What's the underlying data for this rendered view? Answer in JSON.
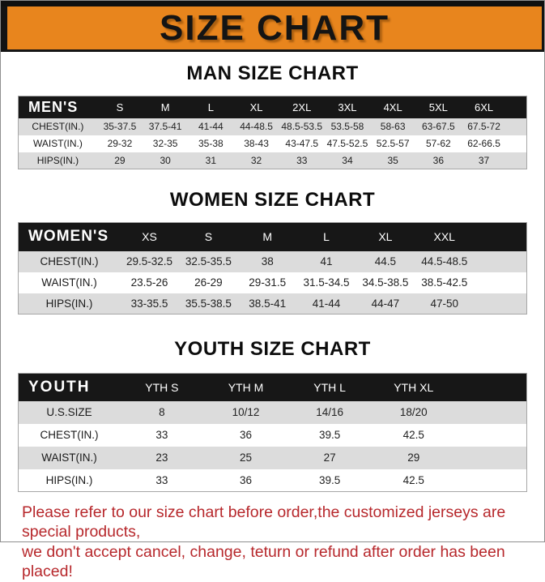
{
  "colors": {
    "accent_orange": "#E8851D",
    "header_black": "#171717",
    "row_gray": "#DCDCDC",
    "note_red": "#B7282C"
  },
  "banner": {
    "title": "SIZE CHART"
  },
  "sections": [
    {
      "heading": "MAN SIZE CHART",
      "table": {
        "group_label": "MEN'S",
        "sizes": [
          "S",
          "M",
          "L",
          "XL",
          "2XL",
          "3XL",
          "4XL",
          "5XL",
          "6XL"
        ],
        "rows": [
          {
            "label": "CHEST(IN.)",
            "values": [
              "35-37.5",
              "37.5-41",
              "41-44",
              "44-48.5",
              "48.5-53.5",
              "53.5-58",
              "58-63",
              "63-67.5",
              "67.5-72"
            ]
          },
          {
            "label": "WAIST(IN.)",
            "values": [
              "29-32",
              "32-35",
              "35-38",
              "38-43",
              "43-47.5",
              "47.5-52.5",
              "52.5-57",
              "57-62",
              "62-66.5"
            ]
          },
          {
            "label": "HIPS(IN.)",
            "values": [
              "29",
              "30",
              "31",
              "32",
              "33",
              "34",
              "35",
              "36",
              "37"
            ]
          }
        ]
      }
    },
    {
      "heading": "WOMEN SIZE CHART",
      "table": {
        "group_label": "WOMEN'S",
        "sizes": [
          "XS",
          "S",
          "M",
          "L",
          "XL",
          "XXL"
        ],
        "rows": [
          {
            "label": "CHEST(IN.)",
            "values": [
              "29.5-32.5",
              "32.5-35.5",
              "38",
              "41",
              "44.5",
              "44.5-48.5"
            ]
          },
          {
            "label": "WAIST(IN.)",
            "values": [
              "23.5-26",
              "26-29",
              "29-31.5",
              "31.5-34.5",
              "34.5-38.5",
              "38.5-42.5"
            ]
          },
          {
            "label": "HIPS(IN.)",
            "values": [
              "33-35.5",
              "35.5-38.5",
              "38.5-41",
              "41-44",
              "44-47",
              "47-50"
            ]
          }
        ]
      }
    },
    {
      "heading": "YOUTH SIZE CHART",
      "table": {
        "group_label": "YOUTH",
        "sizes": [
          "YTH S",
          "YTH M",
          "YTH L",
          "YTH XL"
        ],
        "rows": [
          {
            "label": "U.S.SIZE",
            "values": [
              "8",
              "10/12",
              "14/16",
              "18/20"
            ]
          },
          {
            "label": "CHEST(IN.)",
            "values": [
              "33",
              "36",
              "39.5",
              "42.5"
            ]
          },
          {
            "label": "WAIST(IN.)",
            "values": [
              "23",
              "25",
              "27",
              "29"
            ]
          },
          {
            "label": "HIPS(IN.)",
            "values": [
              "33",
              "36",
              "39.5",
              "42.5"
            ]
          }
        ]
      }
    }
  ],
  "footnote": {
    "line1": "Please refer to our size chart before order,the customized jerseys are special products,",
    "line2": "we don't accept cancel, change, teturn or refund after order has been placed!"
  }
}
